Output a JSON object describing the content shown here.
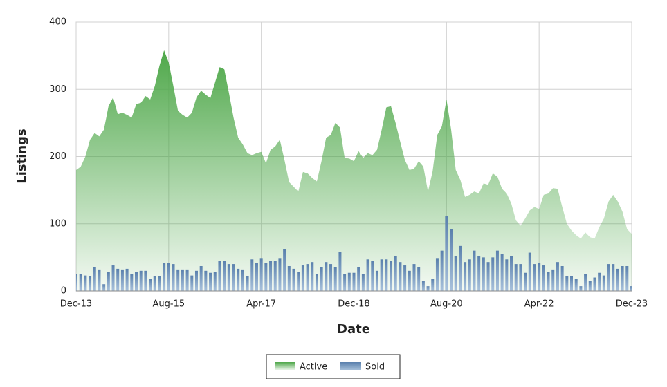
{
  "chart_data": {
    "type": "area_bar",
    "y_label": "Listings",
    "x_label": "Date",
    "categories": [
      "Dec-13",
      null,
      null,
      null,
      null,
      null,
      null,
      null,
      null,
      null,
      null,
      null,
      null,
      null,
      null,
      null,
      null,
      null,
      null,
      null,
      "Aug-15",
      null,
      null,
      null,
      null,
      null,
      null,
      null,
      null,
      null,
      null,
      null,
      null,
      null,
      null,
      null,
      null,
      null,
      null,
      null,
      "Apr-17",
      null,
      null,
      null,
      null,
      null,
      null,
      null,
      null,
      null,
      null,
      null,
      null,
      null,
      null,
      null,
      null,
      null,
      null,
      null,
      "Dec-18",
      null,
      null,
      null,
      null,
      null,
      null,
      null,
      null,
      null,
      null,
      null,
      null,
      null,
      null,
      null,
      null,
      null,
      null,
      null,
      "Aug-20",
      null,
      null,
      null,
      null,
      null,
      null,
      null,
      null,
      null,
      null,
      null,
      null,
      null,
      null,
      null,
      null,
      null,
      null,
      null,
      "Apr-22",
      null,
      null,
      null,
      null,
      null,
      null,
      null,
      null,
      null,
      null,
      null,
      null,
      null,
      null,
      null,
      null,
      null,
      null,
      null,
      "Dec-23"
    ],
    "series": [
      {
        "name": "Active",
        "color": "#4fa84a",
        "values": [
          180,
          185,
          200,
          225,
          235,
          230,
          240,
          275,
          288,
          263,
          265,
          262,
          258,
          278,
          280,
          290,
          285,
          305,
          335,
          358,
          340,
          305,
          268,
          262,
          258,
          265,
          288,
          298,
          292,
          287,
          310,
          333,
          330,
          295,
          258,
          228,
          218,
          205,
          202,
          205,
          207,
          190,
          210,
          215,
          225,
          195,
          162,
          155,
          148,
          177,
          175,
          168,
          163,
          193,
          228,
          232,
          250,
          243,
          198,
          197,
          193,
          208,
          198,
          205,
          202,
          210,
          240,
          273,
          275,
          250,
          222,
          195,
          180,
          182,
          193,
          185,
          148,
          178,
          232,
          245,
          285,
          240,
          180,
          165,
          140,
          143,
          148,
          145,
          160,
          158,
          175,
          170,
          152,
          145,
          130,
          105,
          97,
          108,
          120,
          125,
          122,
          143,
          145,
          153,
          152,
          125,
          100,
          90,
          83,
          78,
          87,
          80,
          78,
          95,
          108,
          133,
          143,
          133,
          118,
          92,
          85
        ]
      },
      {
        "name": "Sold",
        "color": "#6d8fb6",
        "values": [
          25,
          25,
          23,
          22,
          35,
          32,
          10,
          28,
          38,
          33,
          32,
          33,
          25,
          28,
          30,
          30,
          18,
          22,
          22,
          42,
          42,
          40,
          32,
          32,
          32,
          23,
          30,
          37,
          30,
          27,
          28,
          45,
          45,
          40,
          40,
          33,
          32,
          22,
          47,
          42,
          48,
          42,
          45,
          45,
          48,
          62,
          37,
          33,
          28,
          38,
          40,
          43,
          25,
          35,
          43,
          40,
          35,
          58,
          25,
          27,
          27,
          35,
          25,
          47,
          45,
          30,
          47,
          47,
          45,
          52,
          43,
          38,
          30,
          40,
          35,
          15,
          7,
          18,
          48,
          60,
          112,
          92,
          52,
          67,
          43,
          47,
          60,
          52,
          50,
          43,
          50,
          60,
          55,
          47,
          52,
          40,
          40,
          27,
          57,
          40,
          42,
          38,
          28,
          32,
          43,
          37,
          22,
          22,
          18,
          7,
          25,
          15,
          20,
          27,
          23,
          40,
          40,
          33,
          37,
          37,
          7
        ]
      }
    ],
    "ylim": [
      0,
      400
    ],
    "yticks": [
      0,
      100,
      200,
      300,
      400
    ],
    "grid": true,
    "legend": "bottom"
  }
}
